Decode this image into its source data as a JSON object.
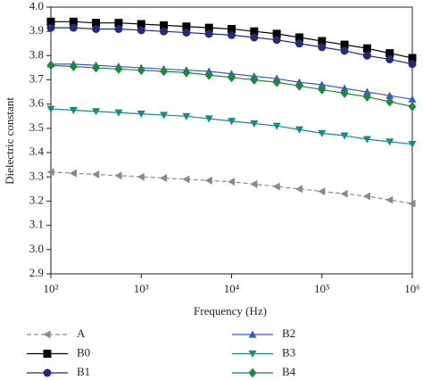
{
  "chart_data": {
    "type": "line",
    "xlabel": "Frequency (Hz)",
    "ylabel": "Dielectric constant",
    "xscale": "log",
    "xlim": [
      100,
      1000000
    ],
    "ylim": [
      2.9,
      4.0
    ],
    "xticks": [
      {
        "value": 100,
        "label": "10²"
      },
      {
        "value": 1000,
        "label": "10³"
      },
      {
        "value": 10000,
        "label": "10⁴"
      },
      {
        "value": 100000,
        "label": "10⁵"
      },
      {
        "value": 1000000,
        "label": "10⁶"
      }
    ],
    "yticks": [
      2.9,
      {
        "value": 3,
        "label": "3.0"
      },
      3.1,
      3.2,
      3.3,
      3.4,
      3.5,
      3.6,
      3.7,
      3.8,
      3.9,
      {
        "value": 4,
        "label": "4.0"
      }
    ],
    "x": [
      100,
      178,
      316,
      562,
      1000,
      1778,
      3162,
      5623,
      10000,
      17783,
      31623,
      56234,
      100000,
      177828,
      316228,
      562341,
      1000000
    ],
    "series": [
      {
        "name": "A",
        "color": "#8a8a8a",
        "marker": "triangle-left",
        "dashed": true,
        "values": [
          3.32,
          3.315,
          3.31,
          3.305,
          3.3,
          3.295,
          3.29,
          3.285,
          3.28,
          3.27,
          3.26,
          3.25,
          3.24,
          3.23,
          3.22,
          3.205,
          3.19
        ]
      },
      {
        "name": "B0",
        "color": "#000000",
        "marker": "square",
        "values": [
          3.94,
          3.94,
          3.935,
          3.935,
          3.93,
          3.925,
          3.92,
          3.915,
          3.91,
          3.9,
          3.89,
          3.875,
          3.86,
          3.845,
          3.83,
          3.81,
          3.79
        ]
      },
      {
        "name": "B1",
        "color": "#232a7e",
        "marker": "circle",
        "values": [
          3.915,
          3.915,
          3.91,
          3.91,
          3.905,
          3.9,
          3.895,
          3.89,
          3.885,
          3.875,
          3.865,
          3.85,
          3.835,
          3.82,
          3.8,
          3.785,
          3.765
        ]
      },
      {
        "name": "B2",
        "color": "#3a5cc0",
        "marker": "triangle-up",
        "values": [
          3.765,
          3.765,
          3.76,
          3.755,
          3.75,
          3.745,
          3.74,
          3.735,
          3.725,
          3.715,
          3.705,
          3.69,
          3.68,
          3.665,
          3.65,
          3.635,
          3.62
        ]
      },
      {
        "name": "B3",
        "color": "#138a8c",
        "marker": "triangle-down",
        "values": [
          3.58,
          3.575,
          3.57,
          3.565,
          3.56,
          3.555,
          3.55,
          3.54,
          3.53,
          3.52,
          3.51,
          3.495,
          3.48,
          3.47,
          3.455,
          3.445,
          3.435
        ]
      },
      {
        "name": "B4",
        "color": "#1b8a3c",
        "marker": "diamond",
        "values": [
          3.76,
          3.755,
          3.75,
          3.745,
          3.74,
          3.735,
          3.73,
          3.72,
          3.71,
          3.7,
          3.69,
          3.675,
          3.66,
          3.645,
          3.63,
          3.61,
          3.59
        ]
      }
    ]
  }
}
